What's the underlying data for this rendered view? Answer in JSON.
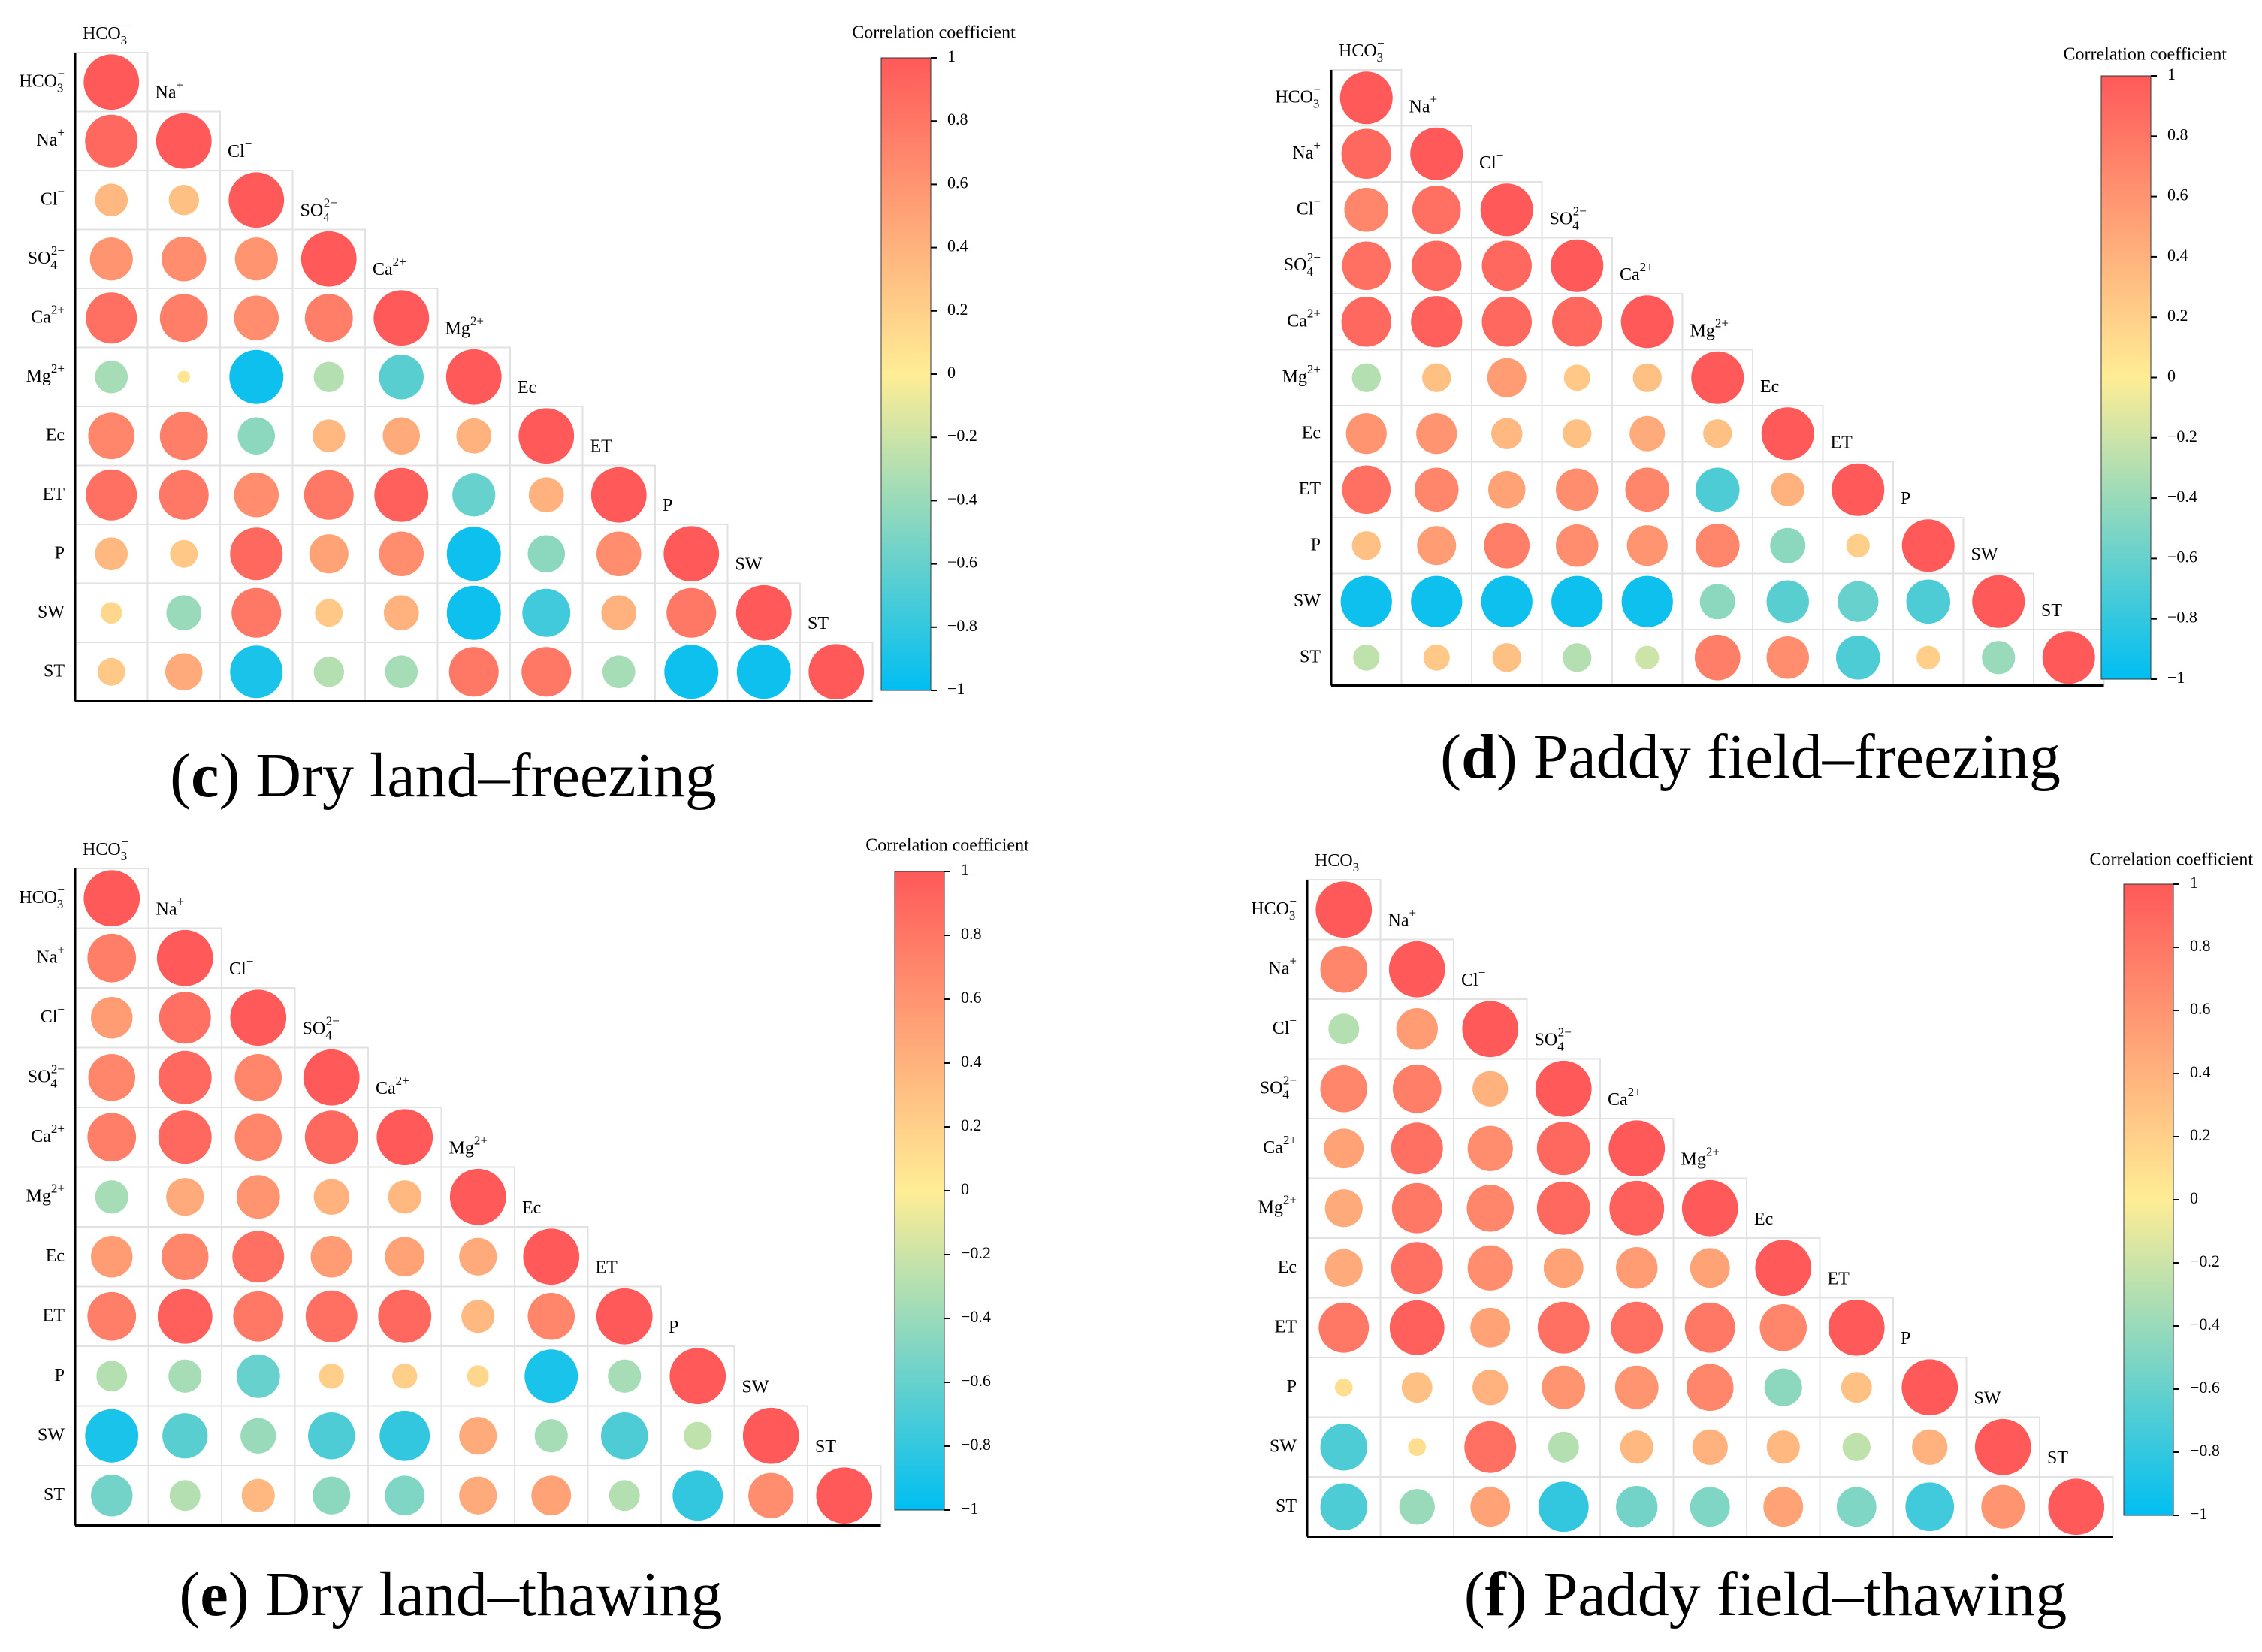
{
  "labels": [
    "HCO3",
    "Na",
    "Cl",
    "SO4",
    "Ca",
    "Mg",
    "Ec",
    "ET",
    "P",
    "SW",
    "ST"
  ],
  "colorbar": {
    "title": "Correlation coefficient",
    "ticks": [
      "1",
      "0.8",
      "0.6",
      "0.4",
      "0.2",
      "0",
      "−0.2",
      "−0.4",
      "−0.6",
      "−0.8",
      "−1"
    ],
    "colors": [
      "#00bef2",
      "#ffed95",
      "#ff5959"
    ]
  },
  "chart_data": [
    {
      "type": "heatmap",
      "panel": "c",
      "title_letter": "c",
      "title_text": "Dry land–freezing",
      "legend": "top-right",
      "variables": [
        "HCO3",
        "Na",
        "Cl",
        "SO4",
        "Ca",
        "Mg",
        "Ec",
        "ET",
        "P",
        "SW",
        "ST"
      ],
      "lower_triangle": [
        [
          1.0
        ],
        [
          0.9,
          1.0
        ],
        [
          0.35,
          0.3,
          1.0
        ],
        [
          0.6,
          0.65,
          0.6,
          1.0
        ],
        [
          0.85,
          0.75,
          0.65,
          0.75,
          1.0
        ],
        [
          -0.35,
          0.05,
          -0.95,
          -0.3,
          -0.65,
          1.0
        ],
        [
          0.7,
          0.75,
          -0.45,
          0.35,
          0.45,
          0.4,
          1.0
        ],
        [
          0.85,
          0.8,
          0.65,
          0.8,
          0.95,
          -0.6,
          0.4,
          1.0
        ],
        [
          0.35,
          0.25,
          0.9,
          0.5,
          0.65,
          -0.95,
          -0.45,
          0.65,
          1.0
        ],
        [
          0.15,
          -0.4,
          0.8,
          0.25,
          0.4,
          -0.95,
          -0.75,
          0.4,
          0.8,
          1.0
        ],
        [
          0.25,
          0.45,
          -0.9,
          -0.3,
          -0.35,
          0.8,
          0.8,
          -0.35,
          -0.95,
          -0.95,
          1.0
        ]
      ]
    },
    {
      "type": "heatmap",
      "panel": "d",
      "title_letter": "d",
      "title_text": "Paddy field–freezing",
      "legend": "top-right",
      "variables": [
        "HCO3",
        "Na",
        "Cl",
        "SO4",
        "Ca",
        "Mg",
        "Ec",
        "ET",
        "P",
        "SW",
        "ST"
      ],
      "lower_triangle": [
        [
          1.0
        ],
        [
          0.9,
          1.0
        ],
        [
          0.7,
          0.85,
          1.0
        ],
        [
          0.85,
          0.9,
          0.9,
          1.0
        ],
        [
          0.9,
          0.95,
          0.9,
          0.9,
          1.0
        ],
        [
          -0.3,
          0.3,
          0.55,
          0.25,
          0.3,
          1.0
        ],
        [
          0.6,
          0.6,
          0.35,
          0.3,
          0.45,
          0.3,
          1.0
        ],
        [
          0.85,
          0.7,
          0.5,
          0.65,
          0.7,
          -0.7,
          0.4,
          1.0
        ],
        [
          0.3,
          0.55,
          0.75,
          0.65,
          0.6,
          0.7,
          -0.45,
          0.2,
          1.0
        ],
        [
          -0.95,
          -0.95,
          -0.95,
          -0.95,
          -0.95,
          -0.45,
          -0.65,
          -0.6,
          -0.7,
          1.0
        ],
        [
          -0.25,
          0.25,
          0.3,
          -0.3,
          -0.2,
          0.75,
          0.65,
          -0.7,
          0.2,
          -0.4,
          1.0
        ]
      ]
    },
    {
      "type": "heatmap",
      "panel": "e",
      "title_letter": "e",
      "title_text": "Dry land–thawing",
      "legend": "top-right",
      "variables": [
        "HCO3",
        "Na",
        "Cl",
        "SO4",
        "Ca",
        "Mg",
        "Ec",
        "ET",
        "P",
        "SW",
        "ST"
      ],
      "lower_triangle": [
        [
          1.0
        ],
        [
          0.75,
          1.0
        ],
        [
          0.55,
          0.85,
          1.0
        ],
        [
          0.7,
          0.9,
          0.7,
          1.0
        ],
        [
          0.75,
          0.9,
          0.7,
          0.9,
          1.0
        ],
        [
          -0.35,
          0.45,
          0.6,
          0.4,
          0.35,
          1.0
        ],
        [
          0.55,
          0.7,
          0.85,
          0.55,
          0.5,
          0.45,
          1.0
        ],
        [
          0.75,
          0.95,
          0.8,
          0.85,
          0.9,
          0.35,
          0.7,
          1.0
        ],
        [
          -0.3,
          -0.35,
          -0.6,
          0.2,
          0.2,
          0.15,
          -0.9,
          -0.35,
          1.0
        ],
        [
          -0.9,
          -0.65,
          -0.4,
          -0.7,
          -0.8,
          0.45,
          -0.35,
          -0.7,
          -0.25,
          1.0
        ],
        [
          -0.55,
          -0.3,
          0.35,
          -0.45,
          -0.5,
          0.45,
          0.5,
          -0.3,
          -0.8,
          0.65,
          1.0
        ]
      ]
    },
    {
      "type": "heatmap",
      "panel": "f",
      "title_letter": "f",
      "title_text": "Paddy field–thawing",
      "legend": "top-right",
      "variables": [
        "HCO3",
        "Na",
        "Cl",
        "SO4",
        "Ca",
        "Mg",
        "Ec",
        "ET",
        "P",
        "SW",
        "ST"
      ],
      "lower_triangle": [
        [
          1.0
        ],
        [
          0.7,
          1.0
        ],
        [
          -0.3,
          0.55,
          1.0
        ],
        [
          0.7,
          0.75,
          0.4,
          1.0
        ],
        [
          0.5,
          0.85,
          0.65,
          0.9,
          1.0
        ],
        [
          0.45,
          0.8,
          0.7,
          0.9,
          0.95,
          1.0
        ],
        [
          0.45,
          0.85,
          0.65,
          0.5,
          0.55,
          0.5,
          1.0
        ],
        [
          0.8,
          0.95,
          0.5,
          0.85,
          0.85,
          0.8,
          0.7,
          1.0
        ],
        [
          0.1,
          0.3,
          0.4,
          0.6,
          0.6,
          0.7,
          -0.45,
          0.3,
          1.0
        ],
        [
          -0.7,
          0.1,
          0.85,
          -0.3,
          0.35,
          0.4,
          0.35,
          -0.25,
          0.4,
          1.0
        ],
        [
          -0.7,
          -0.4,
          0.5,
          -0.8,
          -0.55,
          -0.5,
          0.5,
          -0.5,
          -0.75,
          0.6,
          1.0
        ]
      ]
    }
  ]
}
